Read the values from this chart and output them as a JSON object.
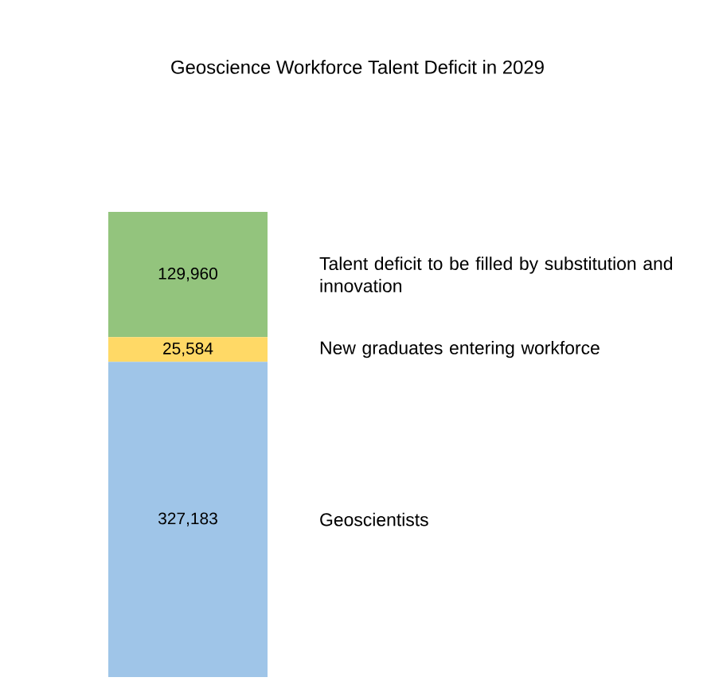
{
  "chart_data": {
    "type": "bar",
    "stacked": true,
    "title": "Geoscience Workforce Talent Deficit in 2029",
    "categories": [
      null
    ],
    "series": [
      {
        "name": "Geoscientists",
        "color": "#9fc5e8",
        "values": [
          327183
        ],
        "value_labels": [
          "327,183"
        ]
      },
      {
        "name": "New graduates entering workforce",
        "color": "#ffd966",
        "values": [
          25584
        ],
        "value_labels": [
          "25,584"
        ]
      },
      {
        "name": "Talent deficit to be filled by substitution and innovation",
        "color": "#93c47d",
        "values": [
          129960
        ],
        "value_labels": [
          "129,960"
        ]
      }
    ]
  }
}
